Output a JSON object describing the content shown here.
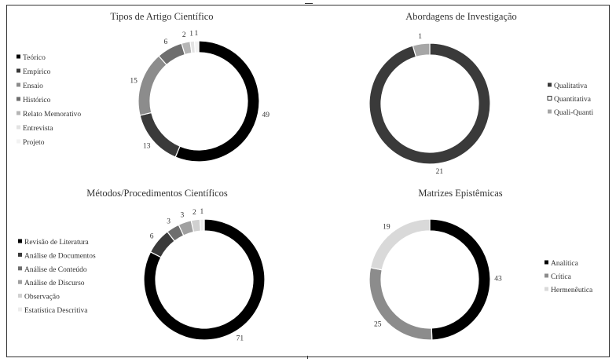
{
  "chart_data": [
    {
      "type": "pie",
      "subtype": "donut",
      "title": "Tipos de Artigo Científico",
      "legend_position": "left",
      "categories": [
        "Teórico",
        "Empírico",
        "Ensaio",
        "Histórico",
        "Relato Memorativo",
        "Entrevista",
        "Projeto"
      ],
      "values": [
        49,
        13,
        15,
        6,
        2,
        1,
        1
      ],
      "colors": [
        "#000000",
        "#3a3a3a",
        "#8c8c8c",
        "#6e6e6e",
        "#b5b5b5",
        "#e3e3e3",
        "#f2f2f2"
      ],
      "data_labels": [
        "49",
        "13",
        "15",
        "6",
        "2",
        "1",
        "1"
      ]
    },
    {
      "type": "pie",
      "subtype": "donut",
      "title": "Abordagens de Investigação",
      "legend_position": "right",
      "categories": [
        "Qualitativa",
        "Quantitativa",
        "Quali-Quanti"
      ],
      "values": [
        21,
        0,
        1
      ],
      "colors": [
        "#3a3a3a",
        "#ffffff",
        "#a6a6a6"
      ],
      "data_labels": [
        "21",
        "",
        "1"
      ]
    },
    {
      "type": "pie",
      "subtype": "donut",
      "title": "Métodos/Procedimentos Científicos",
      "legend_position": "left",
      "categories": [
        "Revisão de Literatura",
        "Análise de Documentos",
        "Análise de Conteúdo",
        "Análise de Discurso",
        "Observação",
        "Estatística Descritiva"
      ],
      "values": [
        71,
        6,
        3,
        3,
        2,
        1
      ],
      "colors": [
        "#000000",
        "#3a3a3a",
        "#6e6e6e",
        "#a0a0a0",
        "#d0d0d0",
        "#ececec"
      ],
      "data_labels": [
        "71",
        "6",
        "3",
        "3",
        "2",
        "1"
      ]
    },
    {
      "type": "pie",
      "subtype": "donut",
      "title": "Matrizes Epistêmicas",
      "legend_position": "right",
      "categories": [
        "Analítica",
        "Crítica",
        "Hermenêutica"
      ],
      "values": [
        43,
        25,
        19
      ],
      "colors": [
        "#000000",
        "#8c8c8c",
        "#d9d9d9"
      ],
      "data_labels": [
        "43",
        "25",
        "19"
      ]
    }
  ]
}
